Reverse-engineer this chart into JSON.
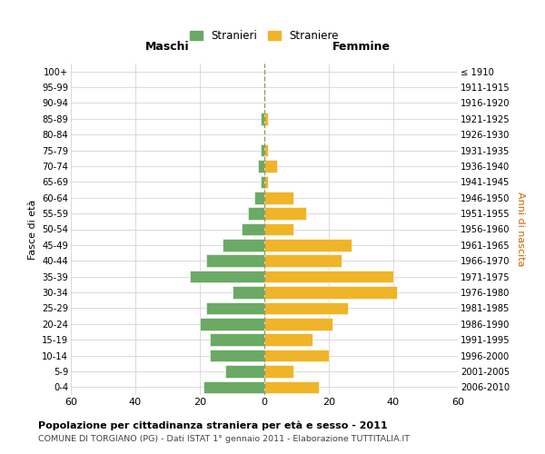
{
  "age_groups": [
    "0-4",
    "5-9",
    "10-14",
    "15-19",
    "20-24",
    "25-29",
    "30-34",
    "35-39",
    "40-44",
    "45-49",
    "50-54",
    "55-59",
    "60-64",
    "65-69",
    "70-74",
    "75-79",
    "80-84",
    "85-89",
    "90-94",
    "95-99",
    "100+"
  ],
  "birth_years": [
    "2006-2010",
    "2001-2005",
    "1996-2000",
    "1991-1995",
    "1986-1990",
    "1981-1985",
    "1976-1980",
    "1971-1975",
    "1966-1970",
    "1961-1965",
    "1956-1960",
    "1951-1955",
    "1946-1950",
    "1941-1945",
    "1936-1940",
    "1931-1935",
    "1926-1930",
    "1921-1925",
    "1916-1920",
    "1911-1915",
    "≤ 1910"
  ],
  "maschi": [
    19,
    12,
    17,
    17,
    20,
    18,
    10,
    23,
    18,
    13,
    7,
    5,
    3,
    1,
    2,
    1,
    0,
    1,
    0,
    0,
    0
  ],
  "femmine": [
    17,
    9,
    20,
    15,
    21,
    26,
    41,
    40,
    24,
    27,
    9,
    13,
    9,
    1,
    4,
    1,
    0,
    1,
    0,
    0,
    0
  ],
  "color_maschi": "#6aaa64",
  "color_femmine": "#f0b429",
  "title_main": "Popolazione per cittadinanza straniera per età e sesso - 2011",
  "title_sub": "COMUNE DI TORGIANO (PG) - Dati ISTAT 1° gennaio 2011 - Elaborazione TUTTITALIA.IT",
  "label_maschi": "Maschi",
  "label_femmine": "Femmine",
  "legend_stranieri": "Stranieri",
  "legend_straniere": "Straniere",
  "ylabel_left": "Fasce di età",
  "ylabel_right": "Anni di nascita",
  "xlim": 60,
  "background_color": "#ffffff",
  "grid_color": "#cccccc"
}
